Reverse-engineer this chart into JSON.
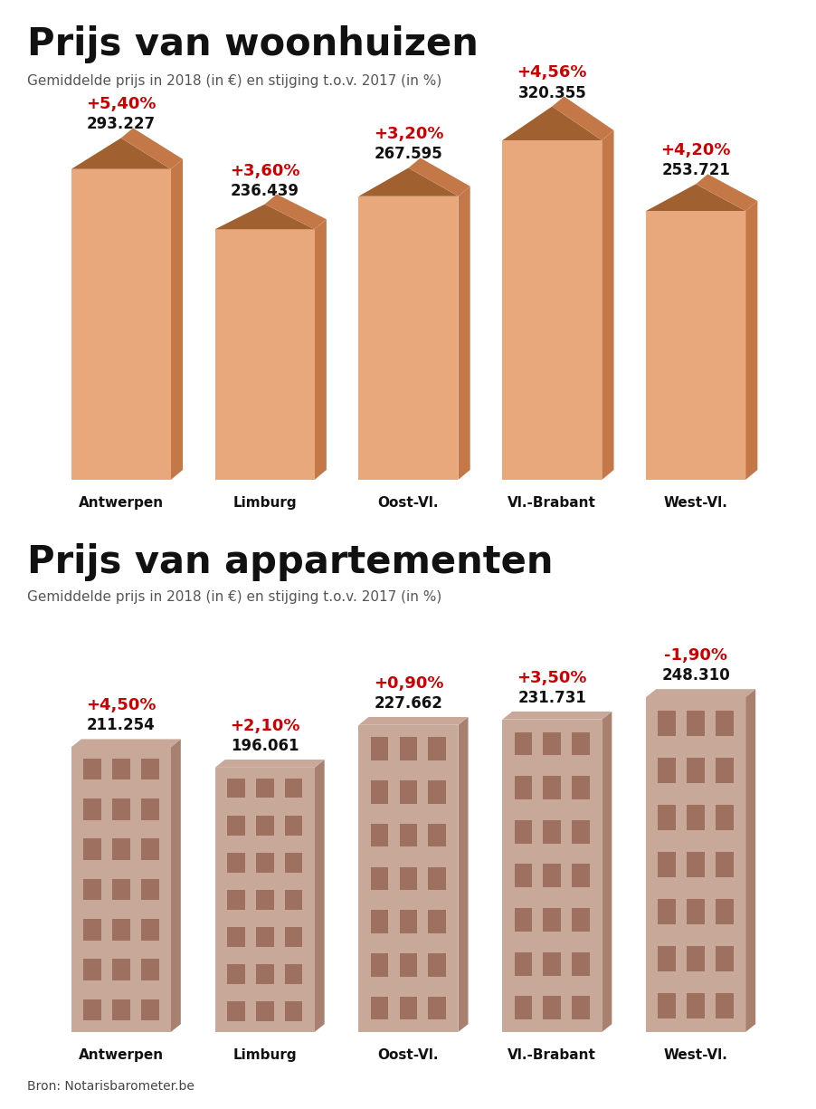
{
  "house_title": "Prijs van woonhuizen",
  "house_subtitle": "Gemiddelde prijs in 2018 (in €) en stijging t.o.v. 2017 (in %)",
  "apt_title": "Prijs van appartementen",
  "apt_subtitle": "Gemiddelde prijs in 2018 (in €) en stijging t.o.v. 2017 (in %)",
  "source": "Bron: Notarisbarometer.be",
  "categories": [
    "Antwerpen",
    "Limburg",
    "Oost-Vl.",
    "Vl.-Brabant",
    "West-Vl."
  ],
  "house_values": [
    293227,
    236439,
    267595,
    320355,
    253721
  ],
  "house_labels": [
    "293.227",
    "236.439",
    "267.595",
    "320.355",
    "253.721"
  ],
  "house_pct": [
    "+5,40%",
    "+3,60%",
    "+3,20%",
    "+4,56%",
    "+4,20%"
  ],
  "apt_values": [
    211254,
    196061,
    227662,
    231731,
    248310
  ],
  "apt_labels": [
    "211.254",
    "196.061",
    "227.662",
    "231.731",
    "248.310"
  ],
  "apt_pct": [
    "+4,50%",
    "+2,10%",
    "+0,90%",
    "+3,50%",
    "-1,90%"
  ],
  "house_front_color": "#e8a87c",
  "house_side_color": "#c47848",
  "house_roof_color": "#a06030",
  "apt_front_color": "#c8a898",
  "apt_side_color": "#a88070",
  "apt_window_color": "#9e7060",
  "bg_color": "#ffffff",
  "text_color": "#111111",
  "red_color": "#cc0000"
}
